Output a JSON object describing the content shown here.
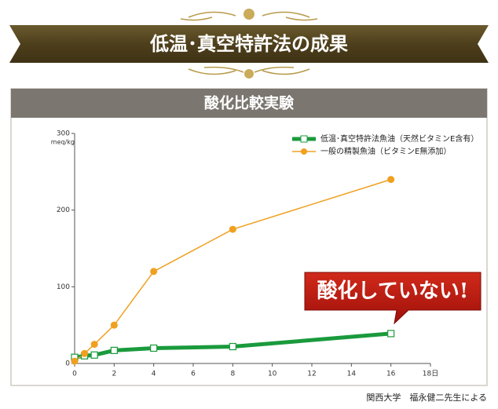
{
  "chart_data": {
    "type": "line",
    "banner": "低温･真空特許法の成果",
    "title": "酸化比較実験",
    "y_unit": "meq/kg",
    "x": [
      0,
      0.5,
      1,
      2,
      4,
      8,
      16
    ],
    "series": [
      {
        "name": "低温･真空特許法魚油（天然ビタミンE含有）",
        "color": "#1a9a3c",
        "marker": "square",
        "width": 5,
        "values": [
          8,
          10,
          11,
          17,
          20,
          22,
          39
        ]
      },
      {
        "name": "一般の精製魚油（ビタミンE無添加）",
        "color": "#f0a020",
        "marker": "circle",
        "width": 1.5,
        "values": [
          3,
          13,
          25,
          50,
          120,
          175,
          240
        ]
      }
    ],
    "xlim": [
      0,
      18
    ],
    "xticks": [
      0,
      2,
      4,
      6,
      8,
      10,
      12,
      14,
      16,
      {
        "value": 18,
        "label": "18日"
      }
    ],
    "ylim": [
      0,
      300
    ],
    "yticks": [
      0,
      100,
      200,
      300
    ],
    "legend": "top-right",
    "annotation": "酸化していない!",
    "source": "関西大学　福永健二先生による"
  }
}
